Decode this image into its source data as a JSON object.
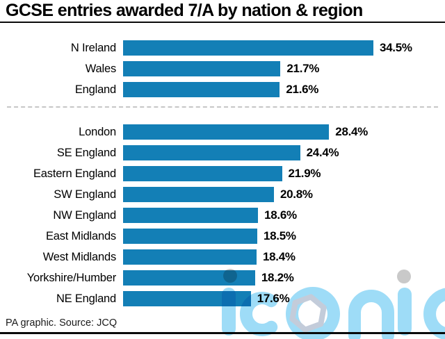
{
  "title": "GCSE entries awarded 7/A by nation & region",
  "footer": "PA graphic. Source: JCQ",
  "watermark": "iconic",
  "colors": {
    "bar": "#137fb6",
    "rule": "#0a0a0a",
    "divider": "#c6c6c6",
    "watermark_blue": "#9edcf7",
    "watermark_grey": "#c9c9c9",
    "watermark_hexagon": "#c3ccda"
  },
  "chart_data": {
    "type": "bar",
    "orientation": "horizontal",
    "title": "GCSE entries awarded 7/A by nation & region",
    "xlabel": "",
    "ylabel": "",
    "unit": "%",
    "xlim": [
      0,
      34.5
    ],
    "grid": false,
    "legend": false,
    "groups": [
      {
        "name": "nations",
        "categories": [
          "N Ireland",
          "Wales",
          "England"
        ],
        "values": [
          34.5,
          21.7,
          21.6
        ],
        "value_labels": [
          "34.5%",
          "21.7%",
          "21.6%"
        ]
      },
      {
        "name": "regions",
        "categories": [
          "London",
          "SE England",
          "Eastern England",
          "SW England",
          "NW England",
          "East Midlands",
          "West Midlands",
          "Yorkshire/Humber",
          "NE England"
        ],
        "values": [
          28.4,
          24.4,
          21.9,
          20.8,
          18.6,
          18.5,
          18.4,
          18.2,
          17.6
        ],
        "value_labels": [
          "28.4%",
          "24.4%",
          "21.9%",
          "20.8%",
          "18.6%",
          "18.5%",
          "18.4%",
          "18.2%",
          "17.6%"
        ]
      }
    ],
    "source": "PA graphic. Source: JCQ"
  }
}
